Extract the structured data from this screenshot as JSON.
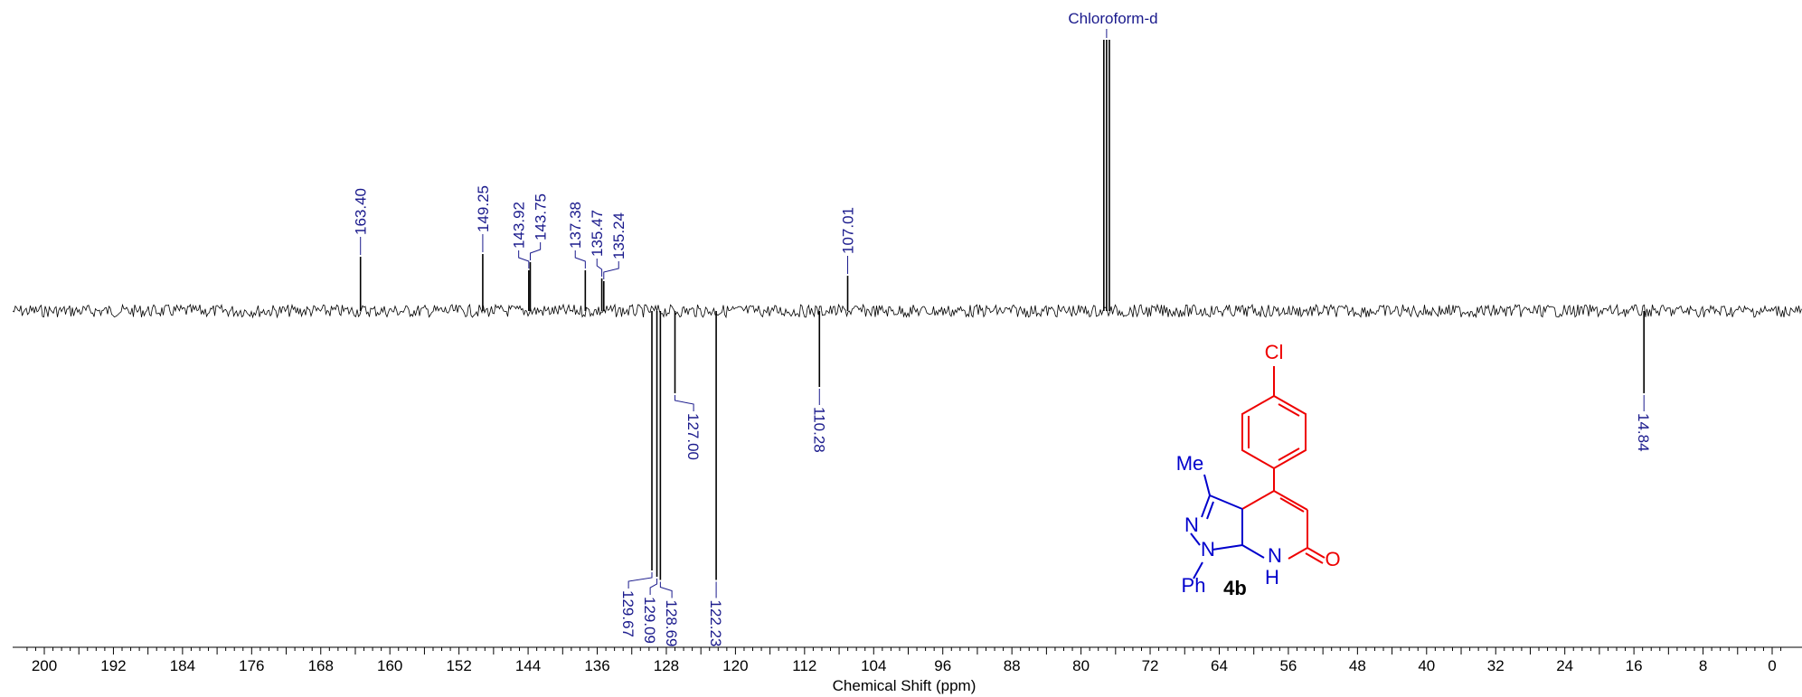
{
  "chart_data": {
    "type": "nmr-spectrum",
    "subtype": "13C DEPT-135",
    "xlabel": "Chemical Shift (ppm)",
    "xlim": [
      200,
      0
    ],
    "x_reversed": true,
    "ticks": [
      "200",
      "192",
      "184",
      "176",
      "168",
      "160",
      "152",
      "144",
      "136",
      "128",
      "120",
      "112",
      "104",
      "96",
      "88",
      "80",
      "72",
      "64",
      "56",
      "48",
      "40",
      "32",
      "24",
      "16",
      "8",
      "0"
    ],
    "tick_values": [
      200,
      192,
      184,
      176,
      168,
      160,
      152,
      144,
      136,
      128,
      120,
      112,
      104,
      96,
      88,
      80,
      72,
      64,
      56,
      48,
      40,
      32,
      24,
      16,
      8,
      0
    ],
    "grid": false,
    "solvent": {
      "label": "Chloroform-d",
      "ppm": [
        77.36,
        77.04,
        76.72
      ],
      "intensity": 1.0
    },
    "peaks": [
      {
        "ppm": 163.4,
        "label": "163.40",
        "intensity": 0.2
      },
      {
        "ppm": 149.25,
        "label": "149.25",
        "intensity": 0.21
      },
      {
        "ppm": 143.92,
        "label": "143.92",
        "intensity": 0.15
      },
      {
        "ppm": 143.75,
        "label": "143.75",
        "intensity": 0.18
      },
      {
        "ppm": 137.38,
        "label": "137.38",
        "intensity": 0.15
      },
      {
        "ppm": 135.47,
        "label": "135.47",
        "intensity": 0.12
      },
      {
        "ppm": 135.24,
        "label": "135.24",
        "intensity": 0.11
      },
      {
        "ppm": 107.01,
        "label": "107.01",
        "intensity": 0.13
      },
      {
        "ppm": 129.67,
        "label": "129.67",
        "intensity": -0.82
      },
      {
        "ppm": 129.09,
        "label": "129.09",
        "intensity": -0.84
      },
      {
        "ppm": 128.69,
        "label": "128.69",
        "intensity": -0.85
      },
      {
        "ppm": 127.0,
        "label": "127.00",
        "intensity": -0.26
      },
      {
        "ppm": 122.23,
        "label": "122.23",
        "intensity": -0.85
      },
      {
        "ppm": 110.28,
        "label": "110.28",
        "intensity": -0.24
      },
      {
        "ppm": 14.84,
        "label": "14.84",
        "intensity": -0.26
      }
    ]
  },
  "molecule": {
    "compound_label": "4b",
    "atoms": {
      "cl": "Cl",
      "me": "Me",
      "n1": "N",
      "n2": "N",
      "nh": "N",
      "h": "H",
      "o": "O",
      "ph": "Ph"
    },
    "colors": {
      "aryl": "#ee0000",
      "pyrazole": "#0000cc",
      "label": "#000000"
    }
  }
}
